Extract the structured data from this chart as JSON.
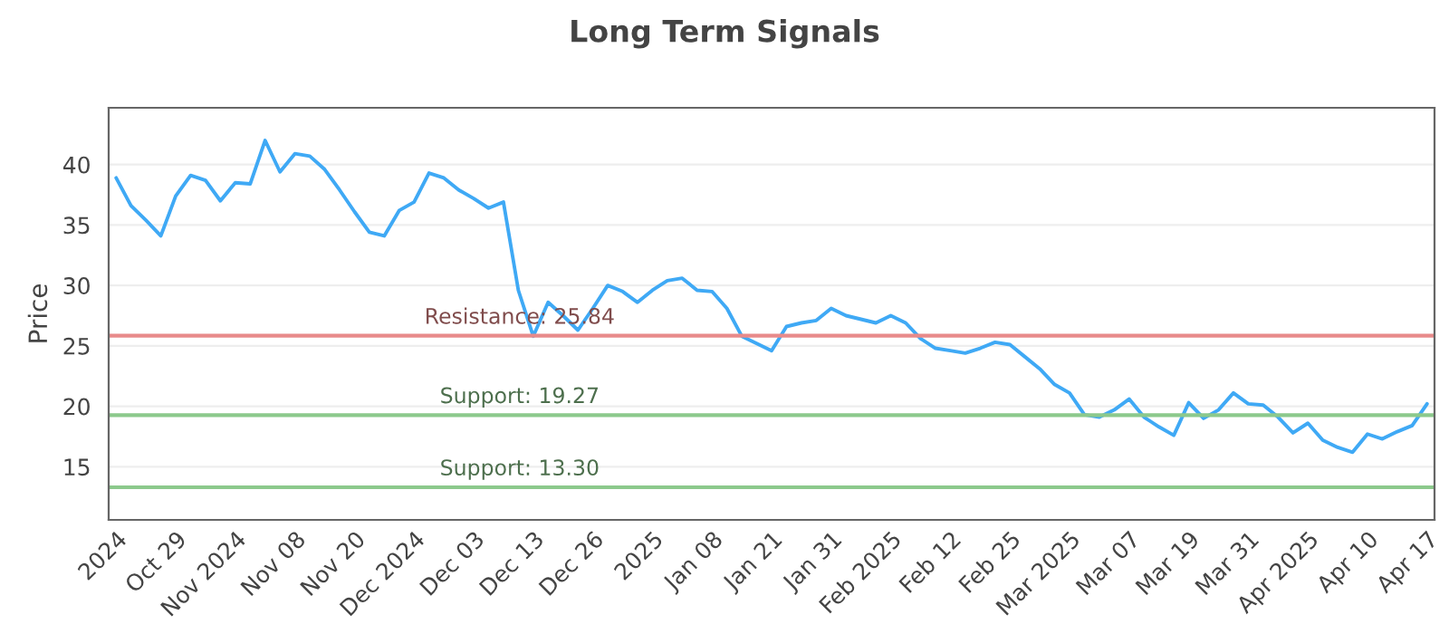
{
  "chart_data": {
    "type": "line",
    "title": "Long Term Signals",
    "ylabel": "Price",
    "categories": [
      "2024",
      null,
      null,
      null,
      "Oct 29",
      null,
      null,
      null,
      "Nov 2024",
      null,
      null,
      null,
      "Nov 08",
      null,
      null,
      null,
      "Nov 20",
      null,
      null,
      null,
      "Dec 2024",
      null,
      null,
      null,
      "Dec 03",
      null,
      null,
      null,
      "Dec 13",
      null,
      null,
      null,
      "Dec 26",
      null,
      null,
      null,
      "2025",
      null,
      null,
      null,
      "Jan 08",
      null,
      null,
      null,
      "Jan 21",
      null,
      null,
      null,
      "Jan 31",
      null,
      null,
      null,
      "Feb 2025",
      null,
      null,
      null,
      "Feb 12",
      null,
      null,
      null,
      "Feb 25",
      null,
      null,
      null,
      "Mar 2025",
      null,
      null,
      null,
      "Mar 07",
      null,
      null,
      null,
      "Mar 19",
      null,
      null,
      null,
      "Mar 31",
      null,
      null,
      null,
      "Apr 2025",
      null,
      null,
      null,
      "Apr 10",
      null,
      null,
      null,
      "Apr 17"
    ],
    "series": [
      {
        "color": "#3fa9f5",
        "values": [
          38.9,
          36.6,
          35.4,
          34.1,
          37.4,
          39.1,
          38.7,
          37.0,
          38.5,
          38.4,
          42.0,
          39.4,
          40.9,
          40.7,
          39.6,
          37.9,
          36.1,
          34.4,
          34.1,
          36.2,
          36.9,
          39.3,
          38.9,
          37.9,
          37.2,
          36.4,
          36.9,
          29.6,
          25.8,
          28.6,
          27.5,
          26.3,
          28.1,
          30.0,
          29.5,
          28.6,
          29.6,
          30.4,
          30.6,
          29.6,
          29.5,
          28.1,
          25.8,
          25.2,
          24.6,
          26.6,
          26.9,
          27.1,
          28.1,
          27.5,
          27.2,
          26.9,
          27.5,
          26.9,
          25.6,
          24.8,
          24.6,
          24.4,
          24.8,
          25.3,
          25.1,
          24.1,
          23.1,
          21.8,
          21.1,
          19.3,
          19.1,
          19.7,
          20.6,
          19.1,
          18.3,
          17.6,
          20.3,
          19.0,
          19.7,
          21.1,
          20.2,
          20.1,
          19.1,
          17.8,
          18.6,
          17.2,
          16.6,
          16.2,
          17.7,
          17.3,
          17.9,
          18.4,
          20.2
        ]
      }
    ],
    "ylim": [
      10.6,
      44.7
    ],
    "yticks": [
      15,
      20,
      25,
      30,
      35,
      40
    ],
    "grid": "y",
    "ref_lines": [
      {
        "axis": "y",
        "value": 25.84,
        "label": "Resistance: 25.84",
        "color": "#e88a8a"
      },
      {
        "axis": "y",
        "value": 19.27,
        "label": "Support: 19.27",
        "color": "#8cc98c"
      },
      {
        "axis": "y",
        "value": 13.3,
        "label": "Support: 13.30",
        "color": "#8cc98c"
      }
    ]
  }
}
